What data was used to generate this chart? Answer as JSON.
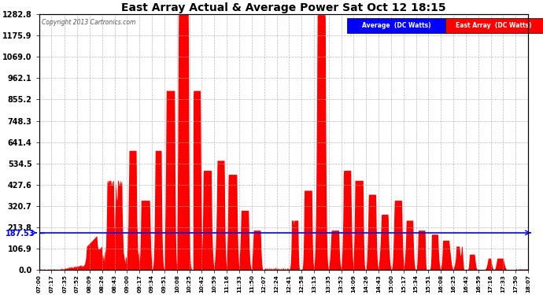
{
  "title": "East Array Actual & Average Power Sat Oct 12 18:15",
  "copyright": "Copyright 2013 Cartronics.com",
  "legend_avg_label": "Average  (DC Watts)",
  "legend_east_label": "East Array  (DC Watts)",
  "avg_value": 187.53,
  "y_max": 1282.8,
  "y_min": 0.0,
  "y_ticks": [
    0.0,
    106.9,
    213.8,
    320.7,
    427.6,
    534.5,
    641.4,
    748.3,
    855.2,
    962.1,
    1069.0,
    1175.9,
    1282.8
  ],
  "x_tick_labels": [
    "07:00",
    "07:17",
    "07:35",
    "07:52",
    "08:09",
    "08:26",
    "08:43",
    "09:00",
    "09:17",
    "09:34",
    "09:51",
    "10:08",
    "10:25",
    "10:42",
    "10:59",
    "11:16",
    "11:33",
    "11:50",
    "12:07",
    "12:24",
    "12:41",
    "12:58",
    "13:15",
    "13:35",
    "13:52",
    "14:09",
    "14:26",
    "14:43",
    "15:00",
    "15:17",
    "15:34",
    "15:51",
    "16:08",
    "16:25",
    "16:42",
    "16:59",
    "17:16",
    "17:33",
    "17:50",
    "18:07"
  ],
  "bg_color": "#ffffff",
  "grid_color": "#aaaaaa",
  "line_color": "#0000ff",
  "fill_color": "#ff0000",
  "title_color": "#000000",
  "legend_avg_bg": "#0000ff",
  "legend_east_bg": "#ff0000",
  "legend_text_color": "#ffffff"
}
